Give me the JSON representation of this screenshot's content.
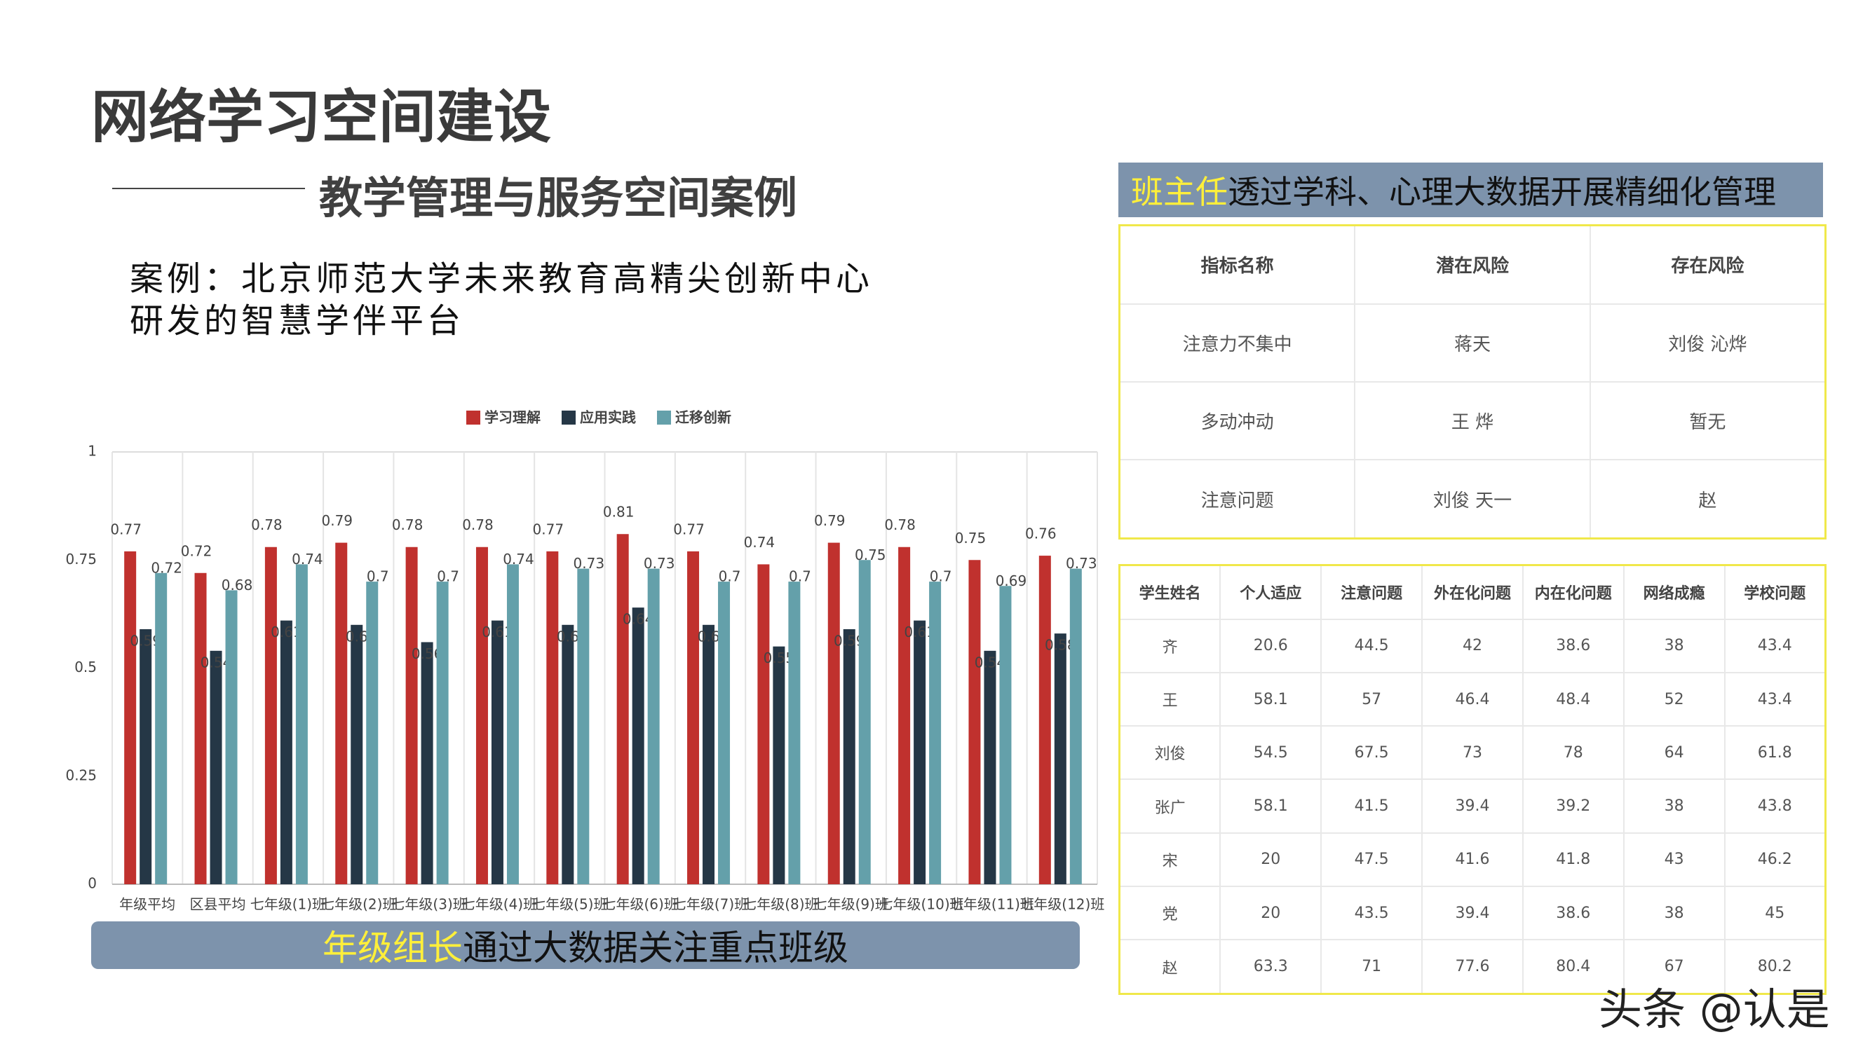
{
  "title": "网络学习空间建设",
  "subtitle": "教学管理与服务空间案例",
  "case_text": "案例：北京师范大学未来教育高精尖创新中心研发的智慧学伴平台",
  "chart_data": {
    "type": "bar",
    "categories": [
      "年级平均",
      "区县平均",
      "七年级(1)班",
      "七年级(2)班",
      "七年级(3)班",
      "七年级(4)班",
      "七年级(5)班",
      "七年级(6)班",
      "七年级(7)班",
      "七年级(8)班",
      "七年级(9)班",
      "七年级(10)班",
      "七年级(11)班",
      "七年级(12)班"
    ],
    "series": [
      {
        "name": "学习理解",
        "color": "#c0312e",
        "values": [
          0.77,
          0.72,
          0.78,
          0.79,
          0.78,
          0.78,
          0.77,
          0.81,
          0.77,
          0.74,
          0.79,
          0.78,
          0.75,
          0.76
        ]
      },
      {
        "name": "应用实践",
        "color": "#253746",
        "values": [
          0.59,
          0.54,
          0.61,
          0.6,
          0.56,
          0.61,
          0.6,
          0.64,
          0.6,
          0.55,
          0.59,
          0.61,
          0.54,
          0.58
        ]
      },
      {
        "name": "迁移创新",
        "color": "#64a0aa",
        "values": [
          0.72,
          0.68,
          0.74,
          0.7,
          0.7,
          0.74,
          0.73,
          0.73,
          0.7,
          0.7,
          0.75,
          0.7,
          0.69,
          0.73
        ]
      }
    ],
    "ylim": [
      0,
      1
    ],
    "yticks": [
      0,
      0.25,
      0.5,
      0.75,
      1
    ],
    "grid": true
  },
  "grade_banner": {
    "highlight": "年级组长",
    "text": "通过大数据关注重点班级"
  },
  "teacher_banner": {
    "highlight": "班主任",
    "text": "透过学科、心理大数据开展精细化管理"
  },
  "risk_table": {
    "header": [
      "指标名称",
      "潜在风险",
      "存在风险"
    ],
    "rows": [
      [
        "注意力不集中",
        "蒋天",
        "刘俊 沁烨"
      ],
      [
        "多动冲动",
        "王 烨",
        "暂无"
      ],
      [
        "注意问题",
        "刘俊 天一",
        "赵"
      ]
    ]
  },
  "score_table": {
    "header": [
      "学生姓名",
      "个人适应",
      "注意问题",
      "外在化问题",
      "内在化问题",
      "网络成瘾",
      "学校问题"
    ],
    "rows": [
      [
        "齐",
        20.6,
        44.5,
        42,
        38.6,
        38,
        43.4
      ],
      [
        "王",
        58.1,
        57,
        46.4,
        48.4,
        52,
        43.4
      ],
      [
        "刘俊",
        54.5,
        67.5,
        73,
        78,
        64,
        61.8
      ],
      [
        "张广",
        58.1,
        41.5,
        39.4,
        39.2,
        38,
        43.8
      ],
      [
        "宋",
        20,
        47.5,
        41.6,
        41.8,
        43,
        46.2
      ],
      [
        "党",
        20,
        43.5,
        39.4,
        38.6,
        38,
        45
      ],
      [
        "赵",
        63.3,
        71,
        77.6,
        80.4,
        67,
        80.2
      ]
    ]
  },
  "watermark": "头条 @认是"
}
